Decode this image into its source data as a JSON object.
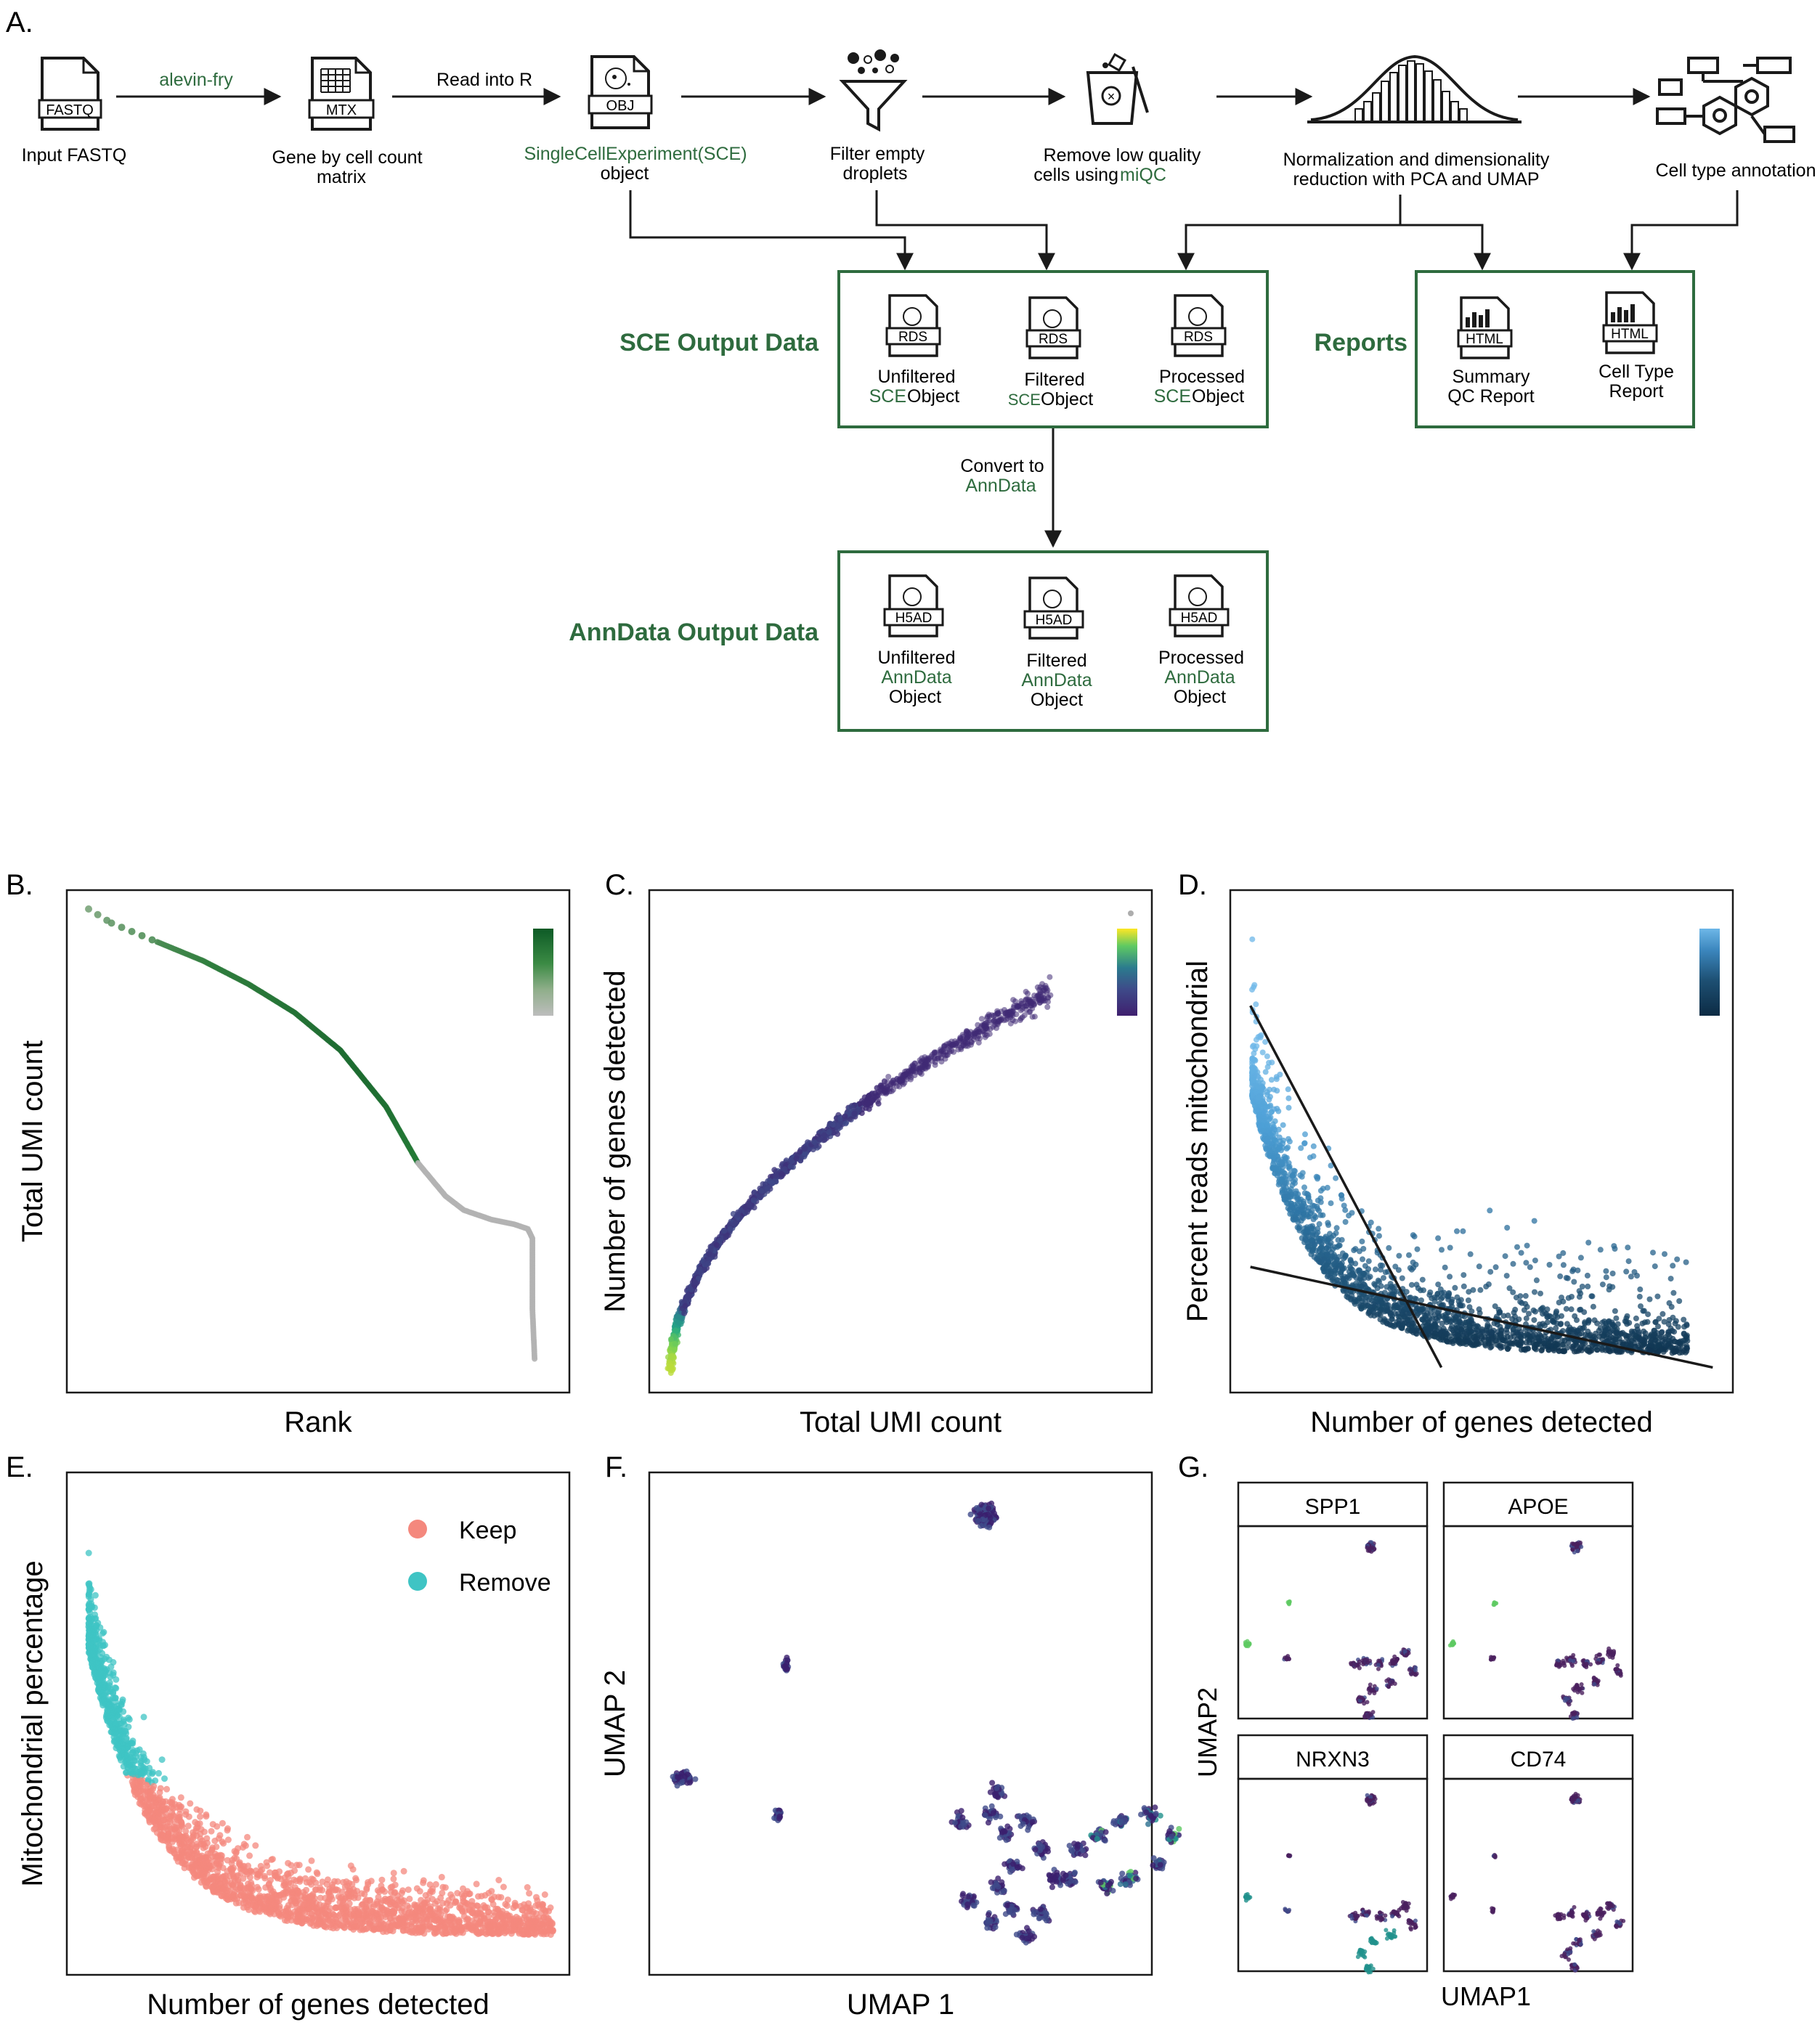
{
  "colors": {
    "green": "#2e6b3e",
    "text": "#1a1a1a",
    "keep": "#f4887d",
    "remove": "#3fc4c4",
    "grey": "#b3b3b3"
  },
  "panel_a": {
    "letter": "A.",
    "steps": [
      {
        "icon_label": "FASTQ",
        "caption": [
          "Input FASTQ"
        ]
      },
      {
        "icon_label": "MTX",
        "caption": [
          "Gene by cell count",
          "matrix"
        ]
      },
      {
        "icon_label": "OBJ",
        "caption_green": "SingleCellExperiment(SCE)",
        "caption": [
          "object"
        ]
      },
      {
        "caption": [
          "Filter empty",
          "droplets"
        ]
      },
      {
        "caption": [
          "Remove low quality"
        ],
        "caption_mixed": {
          "plain": "cells using ",
          "green": "miQC"
        }
      },
      {
        "caption": [
          "Normalization and dimensionality",
          "reduction with PCA and UMAP"
        ]
      },
      {
        "caption": [
          "Cell type annotation"
        ]
      }
    ],
    "arrow_labels": {
      "alevin": "alevin-fry",
      "readR": "Read into R"
    },
    "sce_box": {
      "title": "SCE Output Data",
      "items": [
        {
          "icon_label": "RDS",
          "line1": "Unfiltered",
          "green": "SCE",
          "plain": "Object"
        },
        {
          "icon_label": "RDS",
          "line1": "Filtered",
          "green": "SCE",
          "plain": " Object"
        },
        {
          "icon_label": "RDS",
          "line1": "Processed",
          "green": "SCE",
          "plain": "Object"
        }
      ]
    },
    "reports_box": {
      "title": "Reports",
      "items": [
        {
          "icon_label": "HTML",
          "lines": [
            "Summary",
            "QC Report"
          ]
        },
        {
          "icon_label": "HTML",
          "lines": [
            "Cell Type",
            "Report"
          ]
        }
      ]
    },
    "convert": {
      "line1": "Convert to",
      "line2": "AnnData"
    },
    "anndata_box": {
      "title": "AnnData Output Data",
      "items": [
        {
          "icon_label": "H5AD",
          "line1": "Unfiltered",
          "green": "AnnData",
          "line3": "Object"
        },
        {
          "icon_label": "H5AD",
          "line1": "Filtered",
          "green": "AnnData",
          "line3": "Object"
        },
        {
          "icon_label": "H5AD",
          "line1": "Processed",
          "green": "AnnData",
          "line3": "Object"
        }
      ]
    }
  },
  "chart_data": [
    {
      "panel": "B.",
      "type": "line",
      "title": "",
      "xlabel": "Rank",
      "ylabel": "Total UMI count",
      "x": [
        0,
        0.05,
        0.15,
        0.25,
        0.35,
        0.45,
        0.55,
        0.65,
        0.72,
        0.78,
        0.82,
        0.88,
        0.93,
        0.96,
        0.97,
        0.97,
        0.975
      ],
      "y": [
        1.0,
        0.97,
        0.93,
        0.89,
        0.84,
        0.78,
        0.7,
        0.58,
        0.46,
        0.39,
        0.36,
        0.34,
        0.33,
        0.32,
        0.3,
        0.15,
        0.04
      ],
      "colorscale": [
        "#bdbdbd",
        "#93b08f",
        "#5f9a5e",
        "#3b8a44",
        "#1f7334",
        "#0d5a26"
      ],
      "legend": "colorbar top-right",
      "grid": false
    },
    {
      "panel": "C.",
      "type": "scatter",
      "xlabel": "Total UMI count",
      "ylabel": "Number of genes detected",
      "relation": "saturating curve, y ≈ x^0.55",
      "colorscale": [
        "#3f1f6e",
        "#3e4a89",
        "#2b7b8e",
        "#22a884",
        "#7ad151",
        "#fde725"
      ],
      "legend": "colorbar top-right",
      "grid": false
    },
    {
      "panel": "D.",
      "type": "scatter",
      "xlabel": "Number of genes detected",
      "ylabel": "Percent reads mitochondrial",
      "lines": [
        {
          "name": "fit-1",
          "x": [
            0.04,
            0.42
          ],
          "y": [
            0.77,
            0.05
          ]
        },
        {
          "name": "fit-2",
          "x": [
            0.04,
            0.96
          ],
          "y": [
            0.25,
            0.05
          ]
        }
      ],
      "colorscale": [
        "#0c2b44",
        "#1d4f72",
        "#2f76a6",
        "#4d9fd5",
        "#6db7e8"
      ],
      "legend": "colorbar top-right",
      "grid": false
    },
    {
      "panel": "E.",
      "type": "scatter",
      "xlabel": "Number of genes detected",
      "ylabel": "Mitochondrial percentage",
      "series": [
        {
          "name": "Keep"
        },
        {
          "name": "Remove"
        }
      ],
      "legend": "top-right",
      "grid": false
    },
    {
      "panel": "F.",
      "type": "scatter",
      "xlabel": "UMAP 1",
      "ylabel": "UMAP 2",
      "clusters": [
        "top",
        "mid-left-small",
        "left",
        "mid",
        "bottom-right-large"
      ],
      "grid": false
    },
    {
      "panel": "G.",
      "type": "scatter",
      "xlabel": "UMAP1",
      "ylabel": "UMAP2",
      "facets": [
        "SPP1",
        "APOE",
        "NRXN3",
        "CD74"
      ],
      "grid": false
    }
  ]
}
